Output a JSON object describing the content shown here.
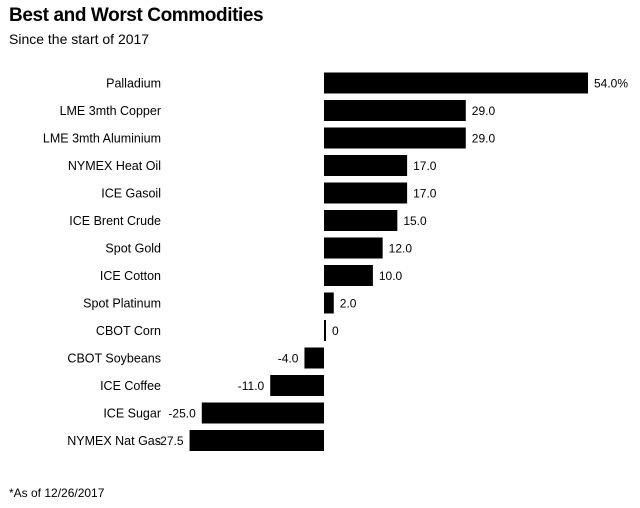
{
  "chart_data": {
    "type": "bar",
    "orientation": "horizontal",
    "title": "Best and Worst Commodities",
    "subtitle": "Since the start of 2017",
    "categories": [
      "Palladium",
      "LME 3mth Copper",
      "LME 3mth Aluminium",
      "NYMEX Heat Oil",
      "ICE Gasoil",
      "ICE Brent Crude",
      "Spot Gold",
      "ICE Cotton",
      "Spot Platinum",
      "CBOT Corn",
      "CBOT Soybeans",
      "ICE Coffee",
      "ICE Sugar",
      "NYMEX Nat Gas"
    ],
    "values": [
      54.0,
      29.0,
      29.0,
      17.0,
      17.0,
      15.0,
      12.0,
      10.0,
      2.0,
      0,
      -4.0,
      -11.0,
      -25.0,
      -27.5
    ],
    "value_labels": [
      "54.0%",
      "29.0",
      "29.0",
      "17.0",
      "17.0",
      "15.0",
      "12.0",
      "10.0",
      "2.0",
      "0",
      "-4.0",
      "-11.0",
      "-25.0",
      "-27.5"
    ],
    "xlim": [
      -27.5,
      54.0
    ],
    "bar_color": "#000000",
    "footnote": "*As of 12/26/2017"
  }
}
